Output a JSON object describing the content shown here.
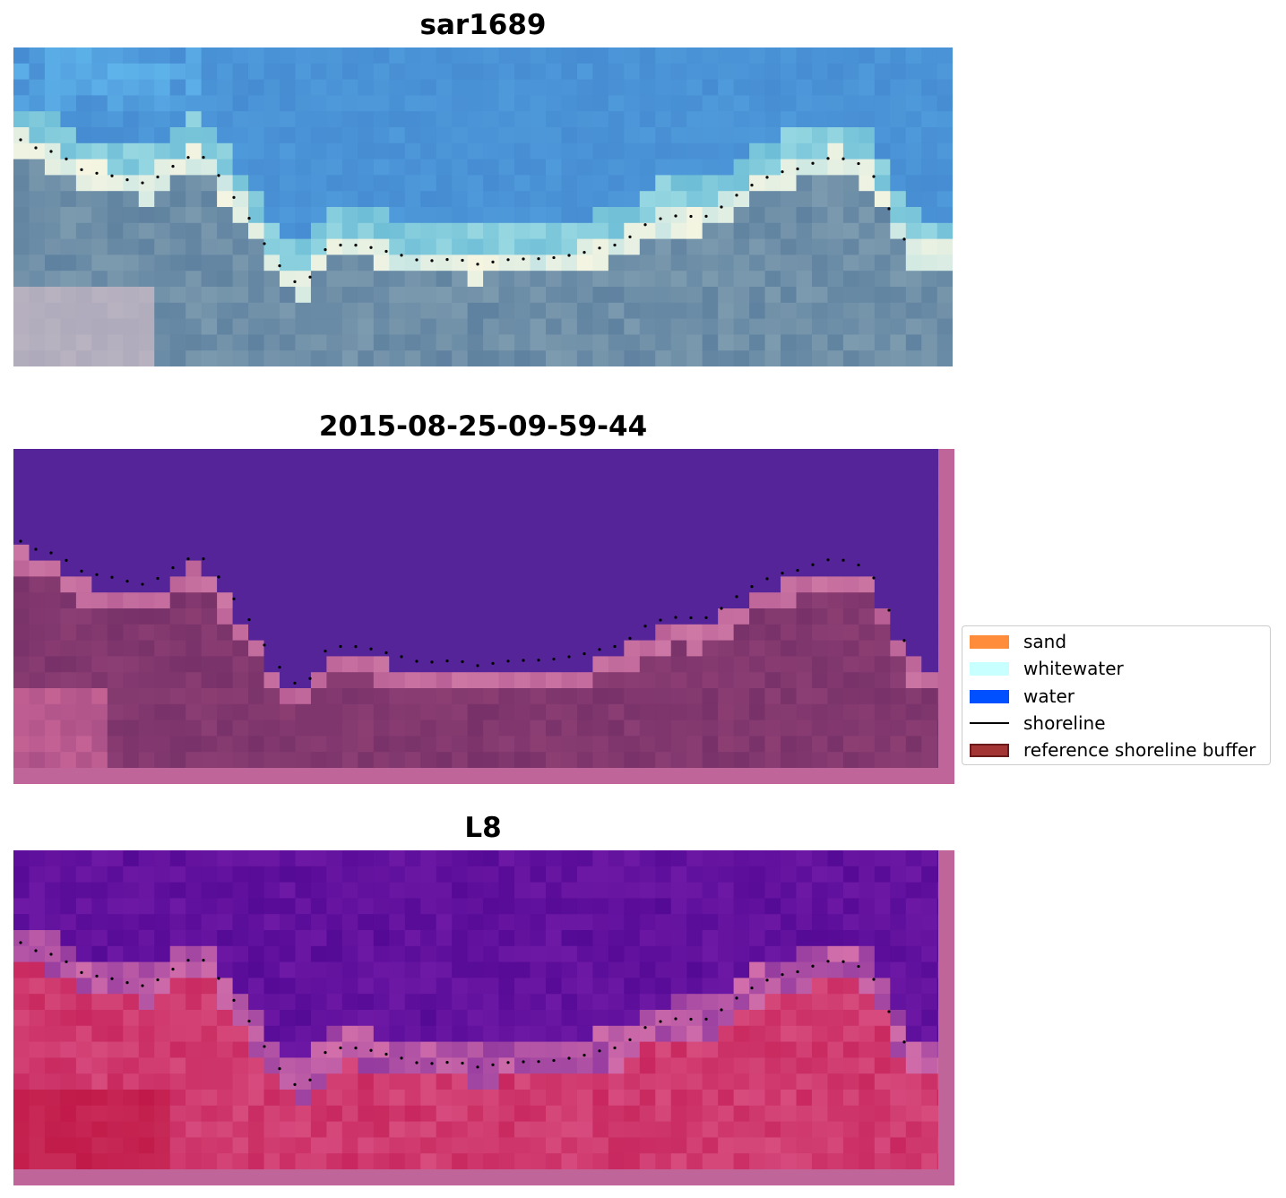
{
  "panels": [
    {
      "title": "sar1689",
      "kind": "rgb"
    },
    {
      "title": "2015-08-25-09-59-44",
      "kind": "classified"
    },
    {
      "title": "L8",
      "kind": "mndwi"
    }
  ],
  "legend": {
    "items": [
      {
        "label": "sand",
        "type": "patch",
        "color": "#ff8c3a",
        "edge": "#ff8c3a"
      },
      {
        "label": "whitewater",
        "type": "patch",
        "color": "#c8ffff",
        "edge": "#c8ffff"
      },
      {
        "label": "water",
        "type": "patch",
        "color": "#0050ff",
        "edge": "#0050ff"
      },
      {
        "label": "shoreline",
        "type": "line",
        "color": "#000000"
      },
      {
        "label": "reference shoreline buffer",
        "type": "patch",
        "color": "#a33535",
        "edge": "#6b1a1a"
      }
    ]
  },
  "colors": {
    "water_class": "#542498",
    "buffer_overlay": "#c0659a",
    "sand_overlay": "#7e356e"
  }
}
